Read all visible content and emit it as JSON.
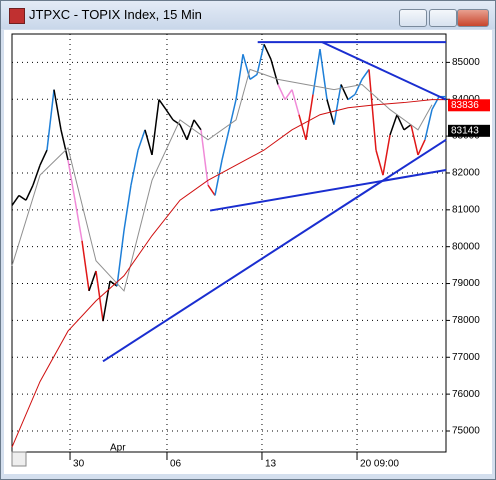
{
  "chart_data": {
    "type": "line",
    "title": "JTPXC - TOPIX Index, 15 Min",
    "xlim": [
      0,
      62
    ],
    "ylim": [
      74430,
      85770
    ],
    "yticks": [
      75000,
      76000,
      77000,
      78000,
      79000,
      80000,
      81000,
      82000,
      83000,
      84000,
      85000
    ],
    "xticks": [
      {
        "value": 8.29,
        "label": "30"
      },
      {
        "value": 22.14,
        "label": "06"
      },
      {
        "value": 35.71,
        "label": "13"
      },
      {
        "value": 49.29,
        "label": "20 09:00"
      }
    ],
    "month_label": {
      "value": 14,
      "label": "Apr"
    },
    "grid": true,
    "series": [
      {
        "x": [
          0,
          1,
          2,
          3,
          4,
          5,
          6,
          7,
          8,
          9,
          10,
          11,
          12,
          13,
          14,
          15,
          16,
          17,
          18,
          19,
          20,
          21,
          22,
          23,
          24,
          25,
          26,
          27,
          28,
          29,
          30,
          31,
          32,
          33,
          34,
          35,
          36,
          37,
          38,
          39,
          40,
          41,
          42,
          43,
          44,
          45,
          46,
          47,
          48,
          49,
          50,
          51,
          52,
          53,
          54,
          55,
          56,
          57,
          58,
          59,
          60,
          61,
          62
        ],
        "values": [
          81120,
          81390,
          81260,
          81670,
          82210,
          82620,
          84260,
          83170,
          82350,
          81260,
          80160,
          78800,
          79340,
          77980,
          79070,
          78930,
          80440,
          81670,
          82620,
          83170,
          82490,
          83990,
          83720,
          83440,
          83310,
          82900,
          83440,
          83170,
          81670,
          81390,
          82350,
          83170,
          83990,
          85220,
          84540,
          84670,
          85490,
          85080,
          84400,
          83990,
          84260,
          83580,
          82900,
          84130,
          85360,
          83990,
          83310,
          84400,
          83990,
          84130,
          84540,
          84810,
          82620,
          81940,
          83030,
          83580,
          83170,
          83310,
          82490,
          82900,
          83720,
          84070,
          84070
        ],
        "colors": [
          "#000000",
          "#000000",
          "#000000",
          "#000000",
          "#000000",
          "#000000",
          "#1e7fd8",
          "#000000",
          "#000000",
          "#f08ad8",
          "#f08ad8",
          "#e01818",
          "#000000",
          "#e01818",
          "#000000",
          "#000000",
          "#1e7fd8",
          "#1e7fd8",
          "#1e7fd8",
          "#1e7fd8",
          "#000000",
          "#000000",
          "#000000",
          "#000000",
          "#000000",
          "#000000",
          "#000000",
          "#000000",
          "#f08ad8",
          "#e01818",
          "#1e7fd8",
          "#1e7fd8",
          "#1e7fd8",
          "#1e7fd8",
          "#1e7fd8",
          "#1e7fd8",
          "#1e7fd8",
          "#000000",
          "#000000",
          "#f08ad8",
          "#f08ad8",
          "#f08ad8",
          "#e01818",
          "#e01818",
          "#1e7fd8",
          "#1e7fd8",
          "#000000",
          "#1e7fd8",
          "#000000",
          "#1e7fd8",
          "#1e7fd8",
          "#1e7fd8",
          "#e01818",
          "#e01818",
          "#e01818",
          "#000000",
          "#000000",
          "#000000",
          "#e01818",
          "#e01818",
          "#1e7fd8",
          "#1e7fd8",
          "#1e7fd8"
        ]
      },
      {
        "color": "#909090",
        "x": [
          0,
          4,
          8,
          12,
          16,
          20,
          24,
          28,
          32,
          34,
          38,
          42,
          46,
          50,
          54,
          58,
          60
        ],
        "values": [
          79480,
          81940,
          82680,
          79620,
          78800,
          81800,
          83440,
          82900,
          83440,
          84810,
          84540,
          84400,
          84260,
          84400,
          83720,
          83170,
          83850
        ]
      },
      {
        "color": "#d01010",
        "x": [
          0,
          4,
          8,
          12,
          16,
          20,
          24,
          28,
          32,
          36,
          40,
          44,
          48,
          52,
          56,
          60,
          62
        ],
        "values": [
          74560,
          76340,
          77710,
          78530,
          79210,
          80300,
          81260,
          81800,
          82210,
          82620,
          83170,
          83580,
          83770,
          83850,
          83910,
          83990,
          83990
        ]
      }
    ],
    "trendlines": {
      "color": "#1a2ed0",
      "lines": [
        {
          "x": [
            13,
            62
          ],
          "values": [
            76890,
            82900
          ]
        },
        {
          "x": [
            28.3,
            62
          ],
          "values": [
            80980,
            82080
          ]
        },
        {
          "x": [
            35.1,
            62
          ],
          "values": [
            85550,
            85550
          ]
        },
        {
          "x": [
            44.3,
            62
          ],
          "values": [
            85550,
            83990
          ]
        }
      ]
    },
    "price_markers": [
      {
        "value": 83836,
        "color": "#ff0000"
      },
      {
        "value": 83143,
        "color": "#000000"
      }
    ]
  }
}
